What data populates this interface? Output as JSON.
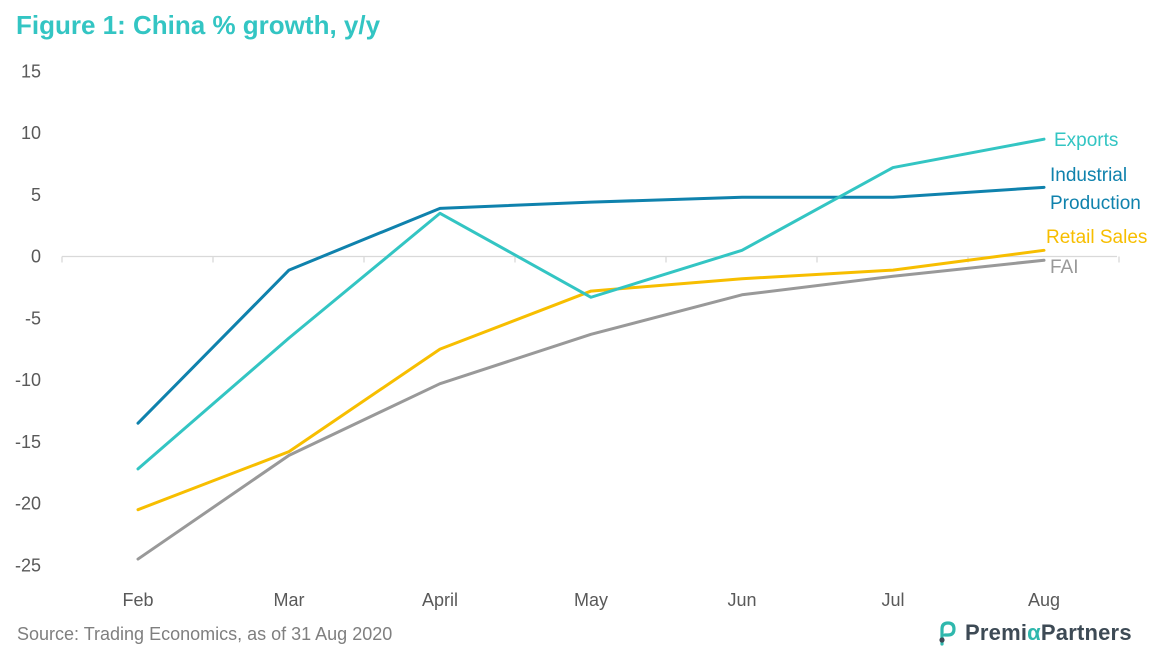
{
  "chart_data": {
    "type": "line",
    "title": "Figure 1: China % growth, y/y",
    "xlabel": "",
    "ylabel": "",
    "categories": [
      "Feb",
      "Mar",
      "April",
      "May",
      "Jun",
      "Jul",
      "Aug"
    ],
    "ylim": [
      -25,
      15
    ],
    "yticks": [
      15,
      10,
      5,
      0,
      -5,
      -10,
      -15,
      -20,
      -25
    ],
    "grid": false,
    "series": [
      {
        "name": "Exports",
        "color": "#33c5c3",
        "values": [
          -17.2,
          -6.6,
          3.5,
          -3.3,
          0.5,
          7.2,
          9.5
        ]
      },
      {
        "name": "Industrial Production",
        "label_lines": [
          "Industrial",
          "Production"
        ],
        "color": "#0f82ad",
        "values": [
          -13.5,
          -1.1,
          3.9,
          4.4,
          4.8,
          4.8,
          5.6
        ]
      },
      {
        "name": "Retail Sales",
        "color": "#f7be00",
        "values": [
          -20.5,
          -15.8,
          -7.5,
          -2.8,
          -1.8,
          -1.1,
          0.5
        ]
      },
      {
        "name": "FAI",
        "color": "#999999",
        "values": [
          -24.5,
          -16.1,
          -10.3,
          -6.3,
          -3.1,
          -1.6,
          -0.3
        ]
      }
    ]
  },
  "footer": {
    "source": "Source: Trading Economics, as of 31 Aug 2020",
    "logo_prefix": "Premi",
    "logo_alpha": "α",
    "logo_suffix": "Partners",
    "logo_icon": "premia-partners-logo-icon"
  }
}
